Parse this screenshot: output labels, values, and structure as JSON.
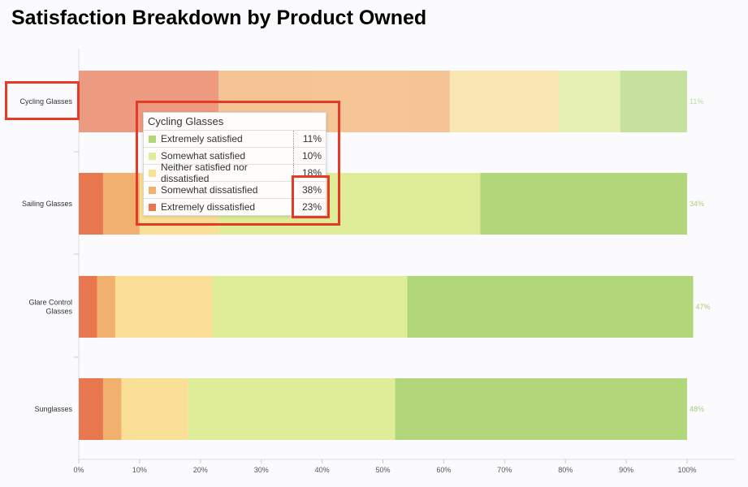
{
  "chart_data": {
    "type": "bar",
    "orientation": "horizontal",
    "stacked": true,
    "title": "Satisfaction Breakdown by Product Owned",
    "categories": [
      "Cycling Glasses",
      "Sailing Glasses",
      "Glare Control Glasses",
      "Sunglasses"
    ],
    "series": [
      {
        "name": "Extremely dissatisfied",
        "color": "#e8764f",
        "values": [
          23,
          4,
          3,
          4
        ]
      },
      {
        "name": "Somewhat dissatisfied",
        "color": "#f2b06e",
        "values": [
          38,
          6,
          3,
          3
        ]
      },
      {
        "name": "Neither satisfied nor dissatisfied",
        "color": "#fadf96",
        "values": [
          18,
          13,
          16,
          11
        ]
      },
      {
        "name": "Somewhat satisfied",
        "color": "#dfed98",
        "values": [
          10,
          43,
          32,
          34
        ]
      },
      {
        "name": "Extremely satisfied",
        "color": "#b2d67a",
        "values": [
          11,
          34,
          47,
          48
        ]
      }
    ],
    "xlim": [
      0,
      100
    ],
    "xticks": [
      "0%",
      "10%",
      "20%",
      "30%",
      "40%",
      "50%",
      "60%",
      "70%",
      "80%",
      "90%",
      "100%"
    ],
    "grid": false,
    "highlighted_category": "Cycling Glasses"
  },
  "tooltip": {
    "title": "Cycling Glasses",
    "rows": [
      {
        "label": "Extremely satisfied",
        "value": "11%",
        "color": "#b2d67a"
      },
      {
        "label": "Somewhat satisfied",
        "value": "10%",
        "color": "#dfed98"
      },
      {
        "label": "Neither satisfied nor dissatisfied",
        "value": "18%",
        "color": "#fadf96"
      },
      {
        "label": "Somewhat dissatisfied",
        "value": "38%",
        "color": "#f2b06e"
      },
      {
        "label": "Extremely dissatisfied",
        "value": "23%",
        "color": "#e8764f"
      }
    ]
  },
  "annotation_color": "#e43a26"
}
